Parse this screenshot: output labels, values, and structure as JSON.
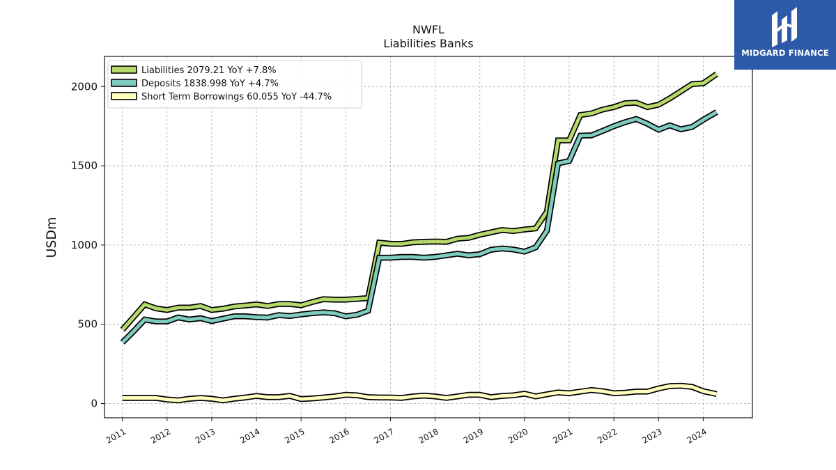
{
  "chart_data": {
    "type": "line",
    "title": "NWFL",
    "subtitle": "Liabilities Banks",
    "ylabel": "USDm",
    "ylim": [
      -90,
      2190
    ],
    "xlim": [
      2010.6,
      2025.1
    ],
    "yticks": [
      0,
      500,
      1000,
      1500,
      2000
    ],
    "xticks": [
      "2011",
      "2012",
      "2013",
      "2014",
      "2015",
      "2016",
      "2017",
      "2018",
      "2019",
      "2020",
      "2021",
      "2022",
      "2023",
      "2024"
    ],
    "grid": true,
    "legend_position": "top-left",
    "x": [
      2011.0,
      2011.25,
      2011.5,
      2011.75,
      2012.0,
      2012.25,
      2012.5,
      2012.75,
      2013.0,
      2013.25,
      2013.5,
      2013.75,
      2014.0,
      2014.25,
      2014.5,
      2014.75,
      2015.0,
      2015.25,
      2015.5,
      2015.75,
      2016.0,
      2016.25,
      2016.5,
      2016.75,
      2017.0,
      2017.25,
      2017.5,
      2017.75,
      2018.0,
      2018.25,
      2018.5,
      2018.75,
      2019.0,
      2019.25,
      2019.5,
      2019.75,
      2020.0,
      2020.25,
      2020.5,
      2020.75,
      2021.0,
      2021.25,
      2021.5,
      2021.75,
      2022.0,
      2022.25,
      2022.5,
      2022.75,
      2023.0,
      2023.25,
      2023.5,
      2023.75,
      2024.0,
      2024.3
    ],
    "series": [
      {
        "name": "Liabilities",
        "legend_label": "Liabilities  2079.21 YoY +7.8%",
        "color": "#b5d96a",
        "values": [
          465,
          545,
          625,
          600,
          590,
          605,
          605,
          615,
          590,
          598,
          612,
          618,
          625,
          615,
          628,
          628,
          620,
          640,
          658,
          655,
          655,
          660,
          665,
          1015,
          1008,
          1007,
          1017,
          1020,
          1022,
          1020,
          1040,
          1045,
          1065,
          1080,
          1095,
          1088,
          1098,
          1105,
          1210,
          1660,
          1660,
          1820,
          1830,
          1855,
          1870,
          1895,
          1898,
          1870,
          1885,
          1925,
          1970,
          2015,
          2020,
          2079
        ]
      },
      {
        "name": "Deposits",
        "legend_label": "Deposits  1838.998 YoY +4.7%",
        "color": "#7ecbbf",
        "values": [
          385,
          455,
          530,
          518,
          518,
          543,
          530,
          538,
          520,
          535,
          550,
          550,
          545,
          542,
          558,
          552,
          562,
          570,
          575,
          570,
          550,
          560,
          585,
          920,
          920,
          925,
          925,
          920,
          925,
          935,
          945,
          935,
          942,
          970,
          978,
          972,
          958,
          985,
          1090,
          1515,
          1530,
          1690,
          1692,
          1720,
          1750,
          1775,
          1795,
          1765,
          1728,
          1755,
          1730,
          1745,
          1790,
          1839
        ]
      },
      {
        "name": "Short Term Borrowings",
        "legend_label": "Short Term Borrowings  60.055 YoY -44.7%",
        "color": "#ffffbf",
        "values": [
          35,
          35,
          35,
          35,
          25,
          20,
          30,
          35,
          30,
          20,
          30,
          38,
          48,
          40,
          40,
          48,
          28,
          32,
          38,
          45,
          55,
          52,
          40,
          38,
          38,
          35,
          45,
          50,
          45,
          35,
          45,
          55,
          55,
          40,
          48,
          52,
          62,
          45,
          58,
          70,
          65,
          75,
          85,
          78,
          65,
          68,
          75,
          75,
          95,
          110,
          112,
          105,
          78,
          60
        ]
      }
    ]
  },
  "logo": {
    "text": "MIDGARD FINANCE",
    "color": "#2c5aa8"
  }
}
